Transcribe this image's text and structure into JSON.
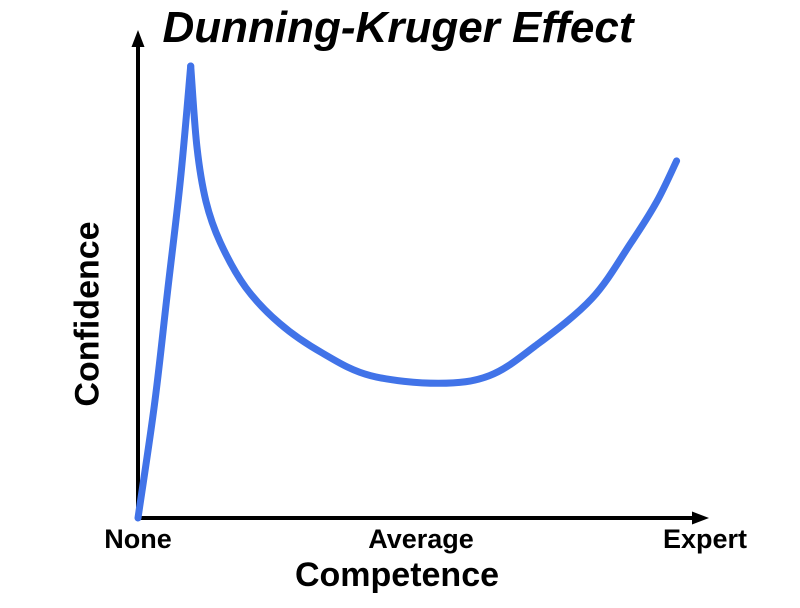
{
  "title": "Dunning-Kruger Effect",
  "colors": {
    "curve": "#4173E8",
    "axis": "#000000",
    "text": "#000000",
    "background": "#FFFFFF"
  },
  "axes": {
    "ylabel": "Confidence",
    "xlabel": "Competence",
    "x_ticks": {
      "none": "None",
      "average": "Average",
      "expert": "Expert"
    }
  },
  "chart_data": {
    "type": "line",
    "title": "Dunning-Kruger Effect",
    "xlabel": "Competence",
    "ylabel": "Confidence",
    "x_tick_labels": [
      "None",
      "Average",
      "Expert"
    ],
    "x_tick_positions": [
      0,
      50,
      100
    ],
    "xlim": [
      0,
      100
    ],
    "ylim": [
      0,
      100
    ],
    "grid": false,
    "legend": false,
    "series": [
      {
        "name": "confidence-curve",
        "color": "#4173E8",
        "segments": [
          {
            "name": "novice-rise-to-peak",
            "points": [
              [
                0,
                0
              ],
              [
                2.9,
                25
              ],
              [
                5.2,
                50
              ],
              [
                7.5,
                75
              ],
              [
                9.3,
                100
              ]
            ]
          },
          {
            "name": "descent-valley-recovery",
            "points": [
              [
                9.3,
                100
              ],
              [
                10.4,
                82
              ],
              [
                12,
                70
              ],
              [
                14.5,
                61
              ],
              [
                19,
                51
              ],
              [
                25,
                43
              ],
              [
                32.5,
                36.5
              ],
              [
                41,
                31.5
              ],
              [
                53,
                29.8
              ],
              [
                62,
                31.5
              ],
              [
                70,
                38
              ],
              [
                80,
                48.5
              ],
              [
                87,
                61
              ],
              [
                91.5,
                70
              ],
              [
                95,
                79
              ]
            ]
          }
        ]
      }
    ]
  }
}
